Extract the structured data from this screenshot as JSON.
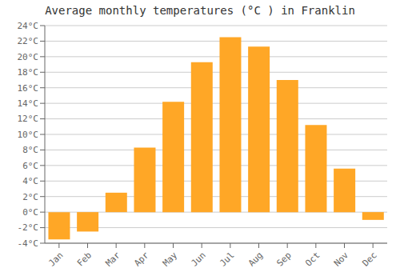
{
  "chart_data": {
    "type": "bar",
    "title": "Average monthly temperatures (°C ) in Franklin",
    "categories": [
      "Jan",
      "Feb",
      "Mar",
      "Apr",
      "May",
      "Jun",
      "Jul",
      "Aug",
      "Sep",
      "Oct",
      "Nov",
      "Dec"
    ],
    "values": [
      -3.5,
      -2.5,
      2.5,
      8.3,
      14.2,
      19.3,
      22.5,
      21.3,
      17.0,
      11.2,
      5.6,
      -1.0
    ],
    "color": "#FFA726",
    "ylim": [
      -4,
      24
    ],
    "yticks": [
      {
        "value": -4,
        "label": "-4°C"
      },
      {
        "value": -2,
        "label": "-2°C"
      },
      {
        "value": 0,
        "label": "0°C"
      },
      {
        "value": 2,
        "label": "2°C"
      },
      {
        "value": 4,
        "label": "4°C"
      },
      {
        "value": 6,
        "label": "6°C"
      },
      {
        "value": 8,
        "label": "8°C"
      },
      {
        "value": 10,
        "label": "10°C"
      },
      {
        "value": 12,
        "label": "12°C"
      },
      {
        "value": 14,
        "label": "14°C"
      },
      {
        "value": 16,
        "label": "16°C"
      },
      {
        "value": 18,
        "label": "18°C"
      },
      {
        "value": 20,
        "label": "20°C"
      },
      {
        "value": 22,
        "label": "22°C"
      },
      {
        "value": 24,
        "label": "24°C"
      }
    ],
    "grid": true
  }
}
